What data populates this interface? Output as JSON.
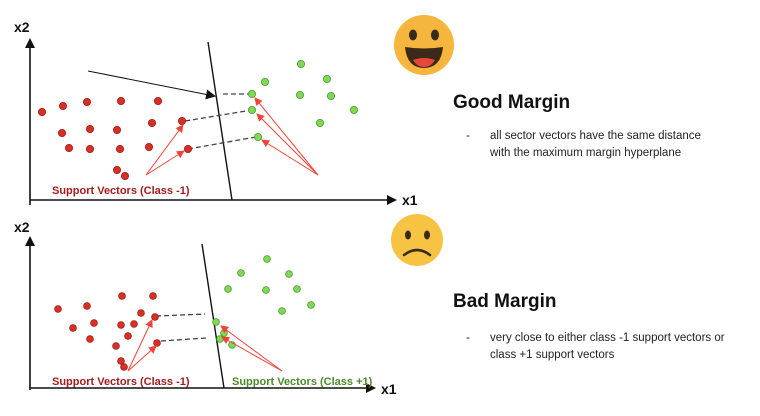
{
  "colors": {
    "class_minus_1": "#d93025",
    "class_plus_1": "#7fd957",
    "annotation_red": "#f44336",
    "label_red": "#a61c1c",
    "label_green": "#4c8a2a",
    "emoji_face": "#f6c343",
    "emoji_happy_face": "#f6b53d"
  },
  "top_panel": {
    "y_axis_label": "x2",
    "x_axis_label": "x1",
    "support_vectors_label": "Support Vectors (Class -1)",
    "emoji": "happy-face",
    "heading": "Good Margin",
    "bullet": "-",
    "description_lines": [
      "all sector vectors have the same distance",
      "with the maximum margin hyperplane"
    ]
  },
  "bottom_panel": {
    "y_axis_label": "x2",
    "x_axis_label": "x1",
    "support_vectors_label_left": "Support Vectors (Class -1)",
    "support_vectors_label_right": "Support Vectors (Class +1)",
    "emoji": "sad-face",
    "heading": "Bad Margin",
    "bullet": "-",
    "description_lines": [
      "very close to either class -1 support vectors  or",
      "class +1 support vectors"
    ]
  }
}
